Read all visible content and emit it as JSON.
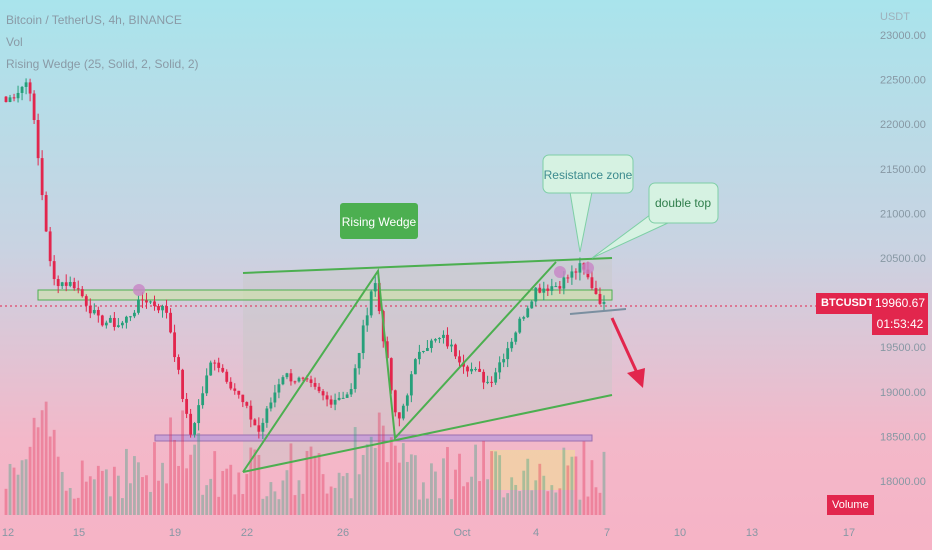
{
  "legend": {
    "title": "Bitcoin / TetherUS, 4h, BINANCE",
    "volume": "Vol",
    "indicator": "Rising Wedge (25, Solid, 2, Solid, 2)"
  },
  "price_axis": {
    "unit": "USDT",
    "labels": [
      "23000.00",
      "22500.00",
      "22000.00",
      "21500.00",
      "21000.00",
      "20500.00",
      "19500.00",
      "19000.00",
      "18500.00",
      "18000.00"
    ]
  },
  "time_axis": {
    "labels": [
      "12",
      "15",
      "19",
      "22",
      "26",
      "Oct",
      "4",
      "7",
      "10",
      "13",
      "17"
    ]
  },
  "symbol_tag": "BTCUSDT",
  "current_price": {
    "value": "19960.67",
    "countdown": "01:53:42"
  },
  "volume_badge": "Volume",
  "annotations": {
    "wedge_label": "Rising Wedge",
    "resistance_label": "Resistance zone",
    "double_top_label": "double top"
  },
  "colors": {
    "up": "#26a07a",
    "down": "#e2264d",
    "pattern_line": "#4caf50",
    "resistance_fill": "#cfe3a6",
    "support_fill": "#c9a2d6",
    "callout_bg": "#d6f2e2"
  },
  "chart_data": {
    "type": "candlestick",
    "symbol": "BTC/USDT",
    "interval": "4h",
    "exchange": "BINANCE",
    "ylim": [
      17800,
      23000
    ],
    "price_line": 19960.67,
    "ohlc_keyframes": [
      {
        "date": "Sep 12",
        "close": 22250
      },
      {
        "date": "Sep 13",
        "close": 22500
      },
      {
        "date": "Sep 13",
        "close": 20250
      },
      {
        "date": "Sep 14",
        "close": 20200
      },
      {
        "date": "Sep 15",
        "close": 19800
      },
      {
        "date": "Sep 16",
        "close": 19750
      },
      {
        "date": "Sep 17",
        "close": 20050
      },
      {
        "date": "Sep 18",
        "close": 19900
      },
      {
        "date": "Sep 19",
        "close": 18500
      },
      {
        "date": "Sep 20",
        "close": 19400
      },
      {
        "date": "Sep 21",
        "close": 19000
      },
      {
        "date": "Sep 22",
        "close": 18550
      },
      {
        "date": "Sep 23",
        "close": 19200
      },
      {
        "date": "Sep 24",
        "close": 19100
      },
      {
        "date": "Sep 25",
        "close": 18900
      },
      {
        "date": "Sep 26",
        "close": 19000
      },
      {
        "date": "Sep 27",
        "close": 20300
      },
      {
        "date": "Sep 28",
        "close": 18600
      },
      {
        "date": "Sep 29",
        "close": 19500
      },
      {
        "date": "Sep 30",
        "close": 19600
      },
      {
        "date": "Oct 1",
        "close": 19300
      },
      {
        "date": "Oct 2",
        "close": 19100
      },
      {
        "date": "Oct 3",
        "close": 19600
      },
      {
        "date": "Oct 4",
        "close": 20150
      },
      {
        "date": "Oct 5",
        "close": 20200
      },
      {
        "date": "Oct 6",
        "close": 20400
      },
      {
        "date": "Oct 7",
        "close": 19960
      }
    ],
    "patterns": {
      "rising_wedge": {
        "upper": [
          [
            "Sep 22",
            20350
          ],
          [
            "Oct 7",
            20500
          ]
        ],
        "lower": [
          [
            "Sep 22",
            18100
          ],
          [
            "Oct 7",
            19000
          ]
        ]
      },
      "resistance_zone": [
        20100,
        20150
      ],
      "support": [
        18500,
        18480
      ],
      "projection": "bearish breakdown"
    }
  }
}
